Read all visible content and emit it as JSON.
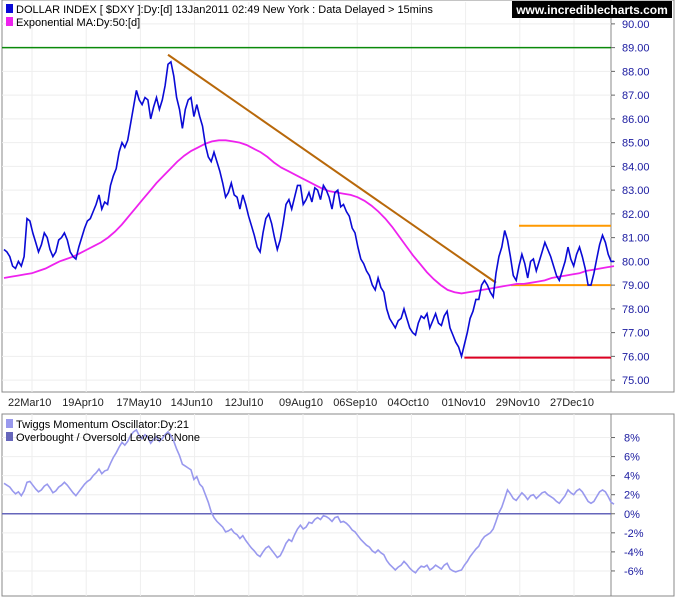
{
  "header": {
    "series_label": "DOLLAR INDEX [ $DXY ]:Dy:[d]   13Jan2011 02:49 New York : Data Delayed > 15mins",
    "ma_label": "Exponential MA:Dy:50:[d]",
    "site": "www.incrediblecharts.com"
  },
  "colors": {
    "price": "#0a0ad6",
    "ma": "#ee22ee",
    "trendline": "#b8680a",
    "range_lines": "#ff9900",
    "support": "#dd0022",
    "resistance": "#0a8a0a",
    "oscillator": "#9999ee",
    "zero_line": "#6666bb",
    "site_bg": "#000000"
  },
  "chart_data": [
    {
      "type": "line",
      "title": "DOLLAR INDEX [ $DXY ]:Dy:[d]",
      "ylim": [
        74.5,
        90.5
      ],
      "yticks": [
        "90.00",
        "89.00",
        "88.00",
        "87.00",
        "86.00",
        "85.00",
        "84.00",
        "83.00",
        "82.00",
        "81.00",
        "80.00",
        "79.00",
        "78.00",
        "77.00",
        "76.00",
        "75.00"
      ],
      "xticks": [
        "22Mar10",
        "19Apr10",
        "17May10",
        "14Jun10",
        "12Jul10",
        "09Aug10",
        "06Sep10",
        "04Oct10",
        "01Nov10",
        "29Nov10",
        "27Dec10"
      ],
      "series": [
        {
          "name": "DOLLAR INDEX [ $DXY ]:Dy:[d]",
          "values": [
            80.5,
            80.4,
            80.2,
            79.8,
            79.7,
            80.0,
            79.8,
            80.2,
            81.8,
            81.7,
            81.2,
            80.8,
            80.4,
            80.7,
            81.2,
            81.0,
            80.5,
            80.2,
            80.4,
            80.9,
            81.0,
            81.2,
            80.9,
            80.4,
            80.2,
            80.1,
            80.6,
            81.0,
            81.4,
            81.7,
            81.8,
            82.1,
            82.4,
            82.8,
            82.2,
            82.5,
            82.4,
            83.2,
            83.6,
            83.9,
            84.6,
            85.0,
            84.8,
            85.1,
            85.8,
            86.5,
            87.2,
            86.8,
            86.6,
            86.9,
            86.8,
            86.0,
            86.5,
            86.9,
            86.4,
            86.8,
            87.4,
            88.3,
            88.4,
            87.8,
            86.9,
            86.4,
            85.6,
            86.4,
            86.8,
            86.9,
            86.1,
            86.6,
            86.1,
            85.7,
            84.9,
            84.4,
            84.2,
            84.6,
            84.2,
            83.8,
            83.3,
            82.7,
            82.9,
            83.3,
            82.8,
            82.7,
            82.2,
            82.8,
            82.4,
            81.9,
            81.5,
            81.1,
            80.6,
            80.4,
            81.2,
            81.8,
            82.0,
            81.6,
            81.0,
            80.5,
            80.9,
            81.6,
            82.4,
            82.6,
            82.2,
            82.7,
            83.2,
            83.2,
            82.4,
            82.6,
            82.9,
            82.5,
            83.1,
            83.0,
            82.6,
            83.2,
            83.0,
            82.7,
            82.2,
            82.9,
            83.0,
            82.3,
            82.4,
            82.1,
            81.9,
            81.4,
            81.2,
            80.6,
            80.1,
            79.9,
            79.6,
            79.4,
            79.0,
            78.8,
            79.3,
            78.9,
            78.7,
            78.0,
            77.6,
            77.4,
            77.2,
            77.5,
            77.6,
            78.0,
            77.6,
            77.2,
            77.0,
            76.9,
            77.4,
            77.7,
            77.6,
            77.8,
            77.2,
            77.5,
            77.8,
            77.4,
            77.3,
            77.7,
            77.9,
            77.2,
            76.9,
            76.6,
            76.4,
            76.0,
            76.5,
            77.0,
            77.6,
            77.9,
            78.4,
            78.4,
            79.0,
            79.2,
            79.0,
            78.7,
            78.5,
            79.5,
            80.2,
            80.6,
            81.3,
            80.9,
            80.2,
            79.4,
            79.2,
            79.8,
            80.3,
            79.9,
            79.3,
            80.0,
            80.1,
            79.6,
            80.0,
            80.4,
            80.8,
            80.5,
            80.2,
            79.8,
            79.4,
            79.2,
            79.6,
            80.0,
            80.6,
            80.1,
            79.8,
            80.3,
            80.6,
            80.2,
            79.7,
            79.0,
            79.0,
            79.5,
            80.1,
            80.7,
            81.1,
            80.8,
            80.3,
            80.0,
            80.0
          ]
        },
        {
          "name": "Exponential MA:Dy:50:[d]",
          "values": [
            79.3,
            79.35,
            79.4,
            79.45,
            79.5,
            79.6,
            79.7,
            79.85,
            80.0,
            80.1,
            80.2,
            80.35,
            80.5,
            80.65,
            80.8,
            81.0,
            81.25,
            81.55,
            81.9,
            82.25,
            82.6,
            82.95,
            83.3,
            83.6,
            83.9,
            84.2,
            84.45,
            84.65,
            84.8,
            84.95,
            85.05,
            85.1,
            85.1,
            85.05,
            85.0,
            84.9,
            84.75,
            84.6,
            84.4,
            84.15,
            83.95,
            83.8,
            83.65,
            83.5,
            83.35,
            83.2,
            83.05,
            82.95,
            82.9,
            82.85,
            82.8,
            82.7,
            82.55,
            82.35,
            82.1,
            81.8,
            81.45,
            81.05,
            80.65,
            80.25,
            79.9,
            79.55,
            79.25,
            79.0,
            78.8,
            78.7,
            78.65,
            78.7,
            78.75,
            78.8,
            78.85,
            78.9,
            78.95,
            79.0,
            79.05,
            79.05,
            79.1,
            79.15,
            79.2,
            79.3,
            79.35,
            79.4,
            79.45,
            79.5,
            79.6,
            79.65,
            79.7,
            79.75,
            79.8
          ]
        }
      ],
      "annotations": {
        "resistance_level": 89.0,
        "trendline": [
          {
            "index": 57,
            "value": 88.7
          },
          {
            "index": 171,
            "value": 79.1
          }
        ],
        "range_upper": 81.5,
        "range_lower": 79.0,
        "range_start_index": 179,
        "support_level": 75.95,
        "support_start_index": 160
      }
    },
    {
      "type": "line",
      "title": "Twiggs Momentum Oscillator:Dy:21",
      "legend": [
        "Twiggs Momentum Oscillator:Dy:21",
        "Overbought / Oversold Levels:0:None"
      ],
      "ylim": [
        -8,
        9
      ],
      "yticks": [
        "8%",
        "6%",
        "4%",
        "2%",
        "0%",
        "-2%",
        "-4%",
        "-6%"
      ],
      "series": [
        {
          "name": "Twiggs Momentum Oscillator:Dy:21",
          "values": [
            3.2,
            3.0,
            2.8,
            2.4,
            2.1,
            2.3,
            1.9,
            2.4,
            3.3,
            3.4,
            3.0,
            2.6,
            2.3,
            2.5,
            2.9,
            3.1,
            2.7,
            2.2,
            2.4,
            2.8,
            3.0,
            3.3,
            3.0,
            2.6,
            2.2,
            1.9,
            2.3,
            2.7,
            3.1,
            3.4,
            3.6,
            4.0,
            4.3,
            4.7,
            4.2,
            4.5,
            4.6,
            5.3,
            5.9,
            6.4,
            7.0,
            7.5,
            7.2,
            7.6,
            8.2,
            8.6,
            8.8,
            8.2,
            7.9,
            8.3,
            8.0,
            7.4,
            7.8,
            8.1,
            7.6,
            7.9,
            8.3,
            8.6,
            8.2,
            7.6,
            6.8,
            6.1,
            5.2,
            5.0,
            4.8,
            4.6,
            3.6,
            3.9,
            3.1,
            2.8,
            2.0,
            1.2,
            0.2,
            -0.4,
            -0.8,
            -1.1,
            -1.4,
            -1.9,
            -1.8,
            -1.6,
            -2.0,
            -2.2,
            -2.6,
            -2.3,
            -2.8,
            -3.2,
            -3.6,
            -3.9,
            -4.3,
            -4.5,
            -4.0,
            -3.6,
            -3.4,
            -3.8,
            -4.2,
            -4.6,
            -4.4,
            -3.8,
            -3.1,
            -2.7,
            -2.9,
            -2.2,
            -1.6,
            -1.2,
            -1.6,
            -1.4,
            -0.9,
            -1.0,
            -0.6,
            -0.4,
            -0.6,
            -0.2,
            -0.3,
            -0.5,
            -0.8,
            -0.4,
            -0.3,
            -0.9,
            -0.8,
            -1.0,
            -1.3,
            -1.7,
            -1.9,
            -2.3,
            -2.7,
            -3.0,
            -3.3,
            -3.5,
            -3.9,
            -4.1,
            -3.8,
            -4.1,
            -4.3,
            -4.9,
            -5.3,
            -5.6,
            -5.9,
            -5.6,
            -5.4,
            -5.0,
            -5.3,
            -5.7,
            -6.0,
            -6.2,
            -5.8,
            -5.5,
            -5.6,
            -5.4,
            -5.9,
            -5.7,
            -5.4,
            -5.6,
            -5.8,
            -5.4,
            -5.2,
            -5.8,
            -6.0,
            -6.1,
            -6.0,
            -5.9,
            -5.4,
            -5.0,
            -4.5,
            -4.1,
            -3.7,
            -3.4,
            -2.8,
            -2.4,
            -2.2,
            -2.0,
            -1.6,
            -0.8,
            0.1,
            0.7,
            1.6,
            2.5,
            2.1,
            1.6,
            1.4,
            1.8,
            2.2,
            1.9,
            1.5,
            1.9,
            2.0,
            1.6,
            1.9,
            2.2,
            2.3,
            2.0,
            1.8,
            1.6,
            1.3,
            1.1,
            1.5,
            1.9,
            2.5,
            2.2,
            2.0,
            2.4,
            2.6,
            2.3,
            1.8,
            1.3,
            1.1,
            1.3,
            1.8,
            2.3,
            2.5,
            2.3,
            1.8,
            1.2,
            1.0
          ]
        }
      ],
      "overbought_oversold_level": 0
    }
  ]
}
